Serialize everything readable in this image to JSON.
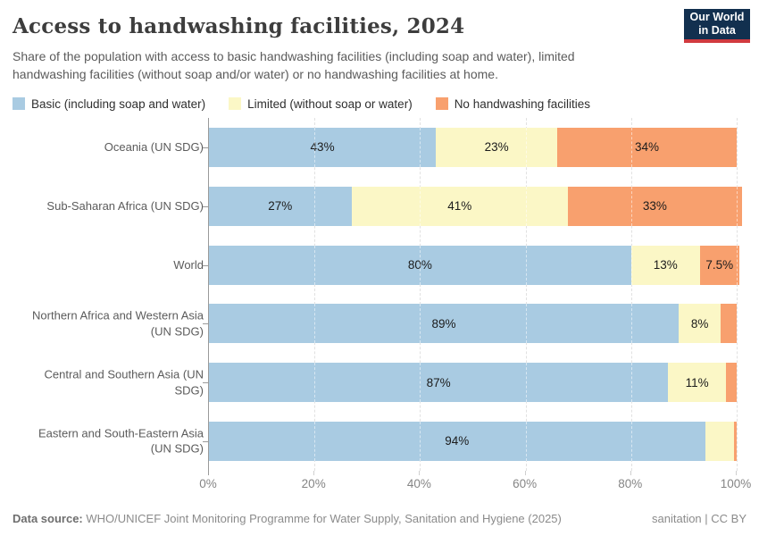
{
  "header": {
    "title": "Access to handwashing facilities, 2024",
    "subtitle": "Share of the population with access to basic handwashing facilities (including soap and water), limited handwashing facilities (without soap and/or water) or no handwashing facilities at home.",
    "logo_line1": "Our World",
    "logo_line2": "in Data"
  },
  "chart_data": {
    "type": "bar",
    "stacked": true,
    "orientation": "horizontal",
    "unit": "%",
    "xlim": [
      0,
      100
    ],
    "x_ticks": [
      0,
      20,
      40,
      60,
      80,
      100
    ],
    "x_tick_suffix": "%",
    "grid": true,
    "legend_position": "top",
    "series": [
      {
        "name": "Basic (including soap and water)",
        "color": "#a9cbe2"
      },
      {
        "name": "Limited (without soap or water)",
        "color": "#fbf7c6"
      },
      {
        "name": "No handwashing facilities",
        "color": "#f8a06e"
      }
    ],
    "categories": [
      "Oceania (UN SDG)",
      "Sub-Saharan Africa (UN SDG)",
      "World",
      "Northern Africa and Western Asia (UN SDG)",
      "Central and Southern Asia (UN SDG)",
      "Eastern and South-Eastern Asia (UN SDG)"
    ],
    "rows": [
      {
        "label": "Oceania (UN SDG)",
        "values": [
          43,
          23,
          34
        ],
        "labels": [
          "43%",
          "23%",
          "34%"
        ]
      },
      {
        "label": "Sub-Saharan Africa (UN SDG)",
        "values": [
          27,
          41,
          33
        ],
        "labels": [
          "27%",
          "41%",
          "33%"
        ]
      },
      {
        "label": "World",
        "values": [
          80,
          13,
          7.5
        ],
        "labels": [
          "80%",
          "13%",
          "7.5%"
        ]
      },
      {
        "label": "Northern Africa and Western Asia (UN SDG)",
        "values": [
          89,
          8,
          3
        ],
        "labels": [
          "89%",
          "8%",
          ""
        ]
      },
      {
        "label": "Central and Southern Asia (UN SDG)",
        "values": [
          87,
          11,
          2
        ],
        "labels": [
          "87%",
          "11%",
          ""
        ]
      },
      {
        "label": "Eastern and South-Eastern Asia (UN SDG)",
        "values": [
          94,
          5.5,
          0.5
        ],
        "labels": [
          "94%",
          "",
          ""
        ]
      }
    ]
  },
  "footer": {
    "source_prefix": "Data source:",
    "source_text": " WHO/UNICEF Joint Monitoring Programme for Water Supply, Sanitation and Hygiene (2025)",
    "right_text": "sanitation | CC BY"
  }
}
